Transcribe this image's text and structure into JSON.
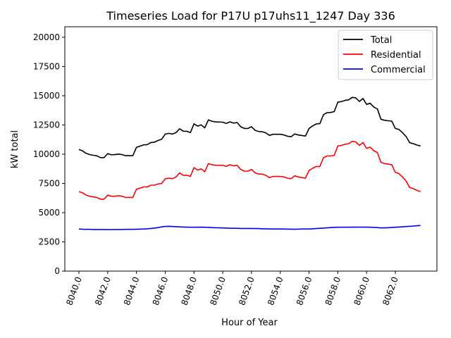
{
  "chart_data": {
    "type": "line",
    "title": "Timeseries Load for P17U p17uhs11_1247  Day 336",
    "xlabel": "Hour of Year",
    "ylabel": "kW total",
    "xlim": [
      8039.02,
      8064.89
    ],
    "ylim": [
      0,
      20900
    ],
    "xticks": [
      8040,
      8042,
      8044,
      8046,
      8048,
      8050,
      8052,
      8054,
      8056,
      8058,
      8060,
      8062
    ],
    "xtick_labels": [
      "8040.0",
      "8042.0",
      "8044.0",
      "8046.0",
      "8048.0",
      "8050.0",
      "8052.0",
      "8054.0",
      "8056.0",
      "8058.0",
      "8060.0",
      "8062.0"
    ],
    "yticks": [
      0,
      2500,
      5000,
      7500,
      10000,
      12500,
      15000,
      17500,
      20000
    ],
    "ytick_labels": [
      "0",
      "2500",
      "5000",
      "7500",
      "10000",
      "12500",
      "15000",
      "17500",
      "20000"
    ],
    "grid": false,
    "legend_position": "top-right",
    "x_start": 8040,
    "x_step": 0.25,
    "series": [
      {
        "name": "Total",
        "color": "#000000",
        "values": [
          10400,
          10280,
          10070,
          9970,
          9910,
          9860,
          9710,
          9710,
          10050,
          9950,
          9960,
          10010,
          9960,
          9870,
          9870,
          9870,
          10580,
          10690,
          10800,
          10820,
          11000,
          11030,
          11170,
          11280,
          11720,
          11780,
          11720,
          11850,
          12180,
          11970,
          11960,
          11850,
          12600,
          12400,
          12510,
          12250,
          12940,
          12820,
          12760,
          12750,
          12740,
          12630,
          12770,
          12660,
          12710,
          12350,
          12200,
          12200,
          12350,
          12040,
          11940,
          11920,
          11820,
          11610,
          11700,
          11700,
          11700,
          11650,
          11540,
          11490,
          11730,
          11640,
          11600,
          11550,
          12200,
          12420,
          12590,
          12610,
          13380,
          13550,
          13570,
          13640,
          14450,
          14500,
          14600,
          14650,
          14860,
          14810,
          14510,
          14760,
          14260,
          14350,
          14040,
          13870,
          12990,
          12900,
          12860,
          12830,
          12200,
          12120,
          11840,
          11510,
          10980,
          10900,
          10780,
          10700
        ]
      },
      {
        "name": "Residential",
        "color": "#ff0000",
        "values": [
          6800,
          6700,
          6500,
          6400,
          6350,
          6300,
          6150,
          6150,
          6500,
          6400,
          6400,
          6450,
          6400,
          6300,
          6300,
          6300,
          7000,
          7100,
          7200,
          7200,
          7350,
          7350,
          7450,
          7500,
          7900,
          7950,
          7900,
          8050,
          8400,
          8200,
          8200,
          8100,
          8850,
          8650,
          8750,
          8500,
          9200,
          9100,
          9050,
          9050,
          9050,
          8950,
          9100,
          9000,
          9050,
          8700,
          8550,
          8550,
          8700,
          8400,
          8300,
          8300,
          8200,
          8000,
          8100,
          8100,
          8100,
          8050,
          7950,
          7900,
          8150,
          8050,
          8000,
          7950,
          8600,
          8800,
          8950,
          8950,
          9700,
          9850,
          9850,
          9900,
          10700,
          10750,
          10850,
          10900,
          11100,
          11050,
          10750,
          11000,
          10500,
          10600,
          10300,
          10150,
          9300,
          9200,
          9150,
          9100,
          8450,
          8350,
          8050,
          7700,
          7150,
          7050,
          6900,
          6800
        ]
      },
      {
        "name": "Commercial",
        "color": "#0000ff",
        "values": [
          3600,
          3580,
          3570,
          3570,
          3560,
          3560,
          3560,
          3560,
          3550,
          3550,
          3560,
          3560,
          3560,
          3570,
          3570,
          3570,
          3580,
          3590,
          3600,
          3620,
          3650,
          3680,
          3720,
          3780,
          3820,
          3830,
          3820,
          3800,
          3780,
          3770,
          3760,
          3750,
          3750,
          3750,
          3760,
          3750,
          3740,
          3720,
          3710,
          3700,
          3690,
          3680,
          3670,
          3660,
          3660,
          3650,
          3650,
          3650,
          3650,
          3640,
          3640,
          3620,
          3620,
          3610,
          3600,
          3600,
          3600,
          3600,
          3590,
          3590,
          3580,
          3590,
          3600,
          3600,
          3600,
          3620,
          3640,
          3660,
          3680,
          3700,
          3720,
          3740,
          3750,
          3750,
          3750,
          3750,
          3760,
          3760,
          3760,
          3760,
          3760,
          3750,
          3740,
          3720,
          3690,
          3700,
          3710,
          3730,
          3750,
          3770,
          3790,
          3810,
          3830,
          3850,
          3880,
          3900
        ]
      }
    ]
  }
}
